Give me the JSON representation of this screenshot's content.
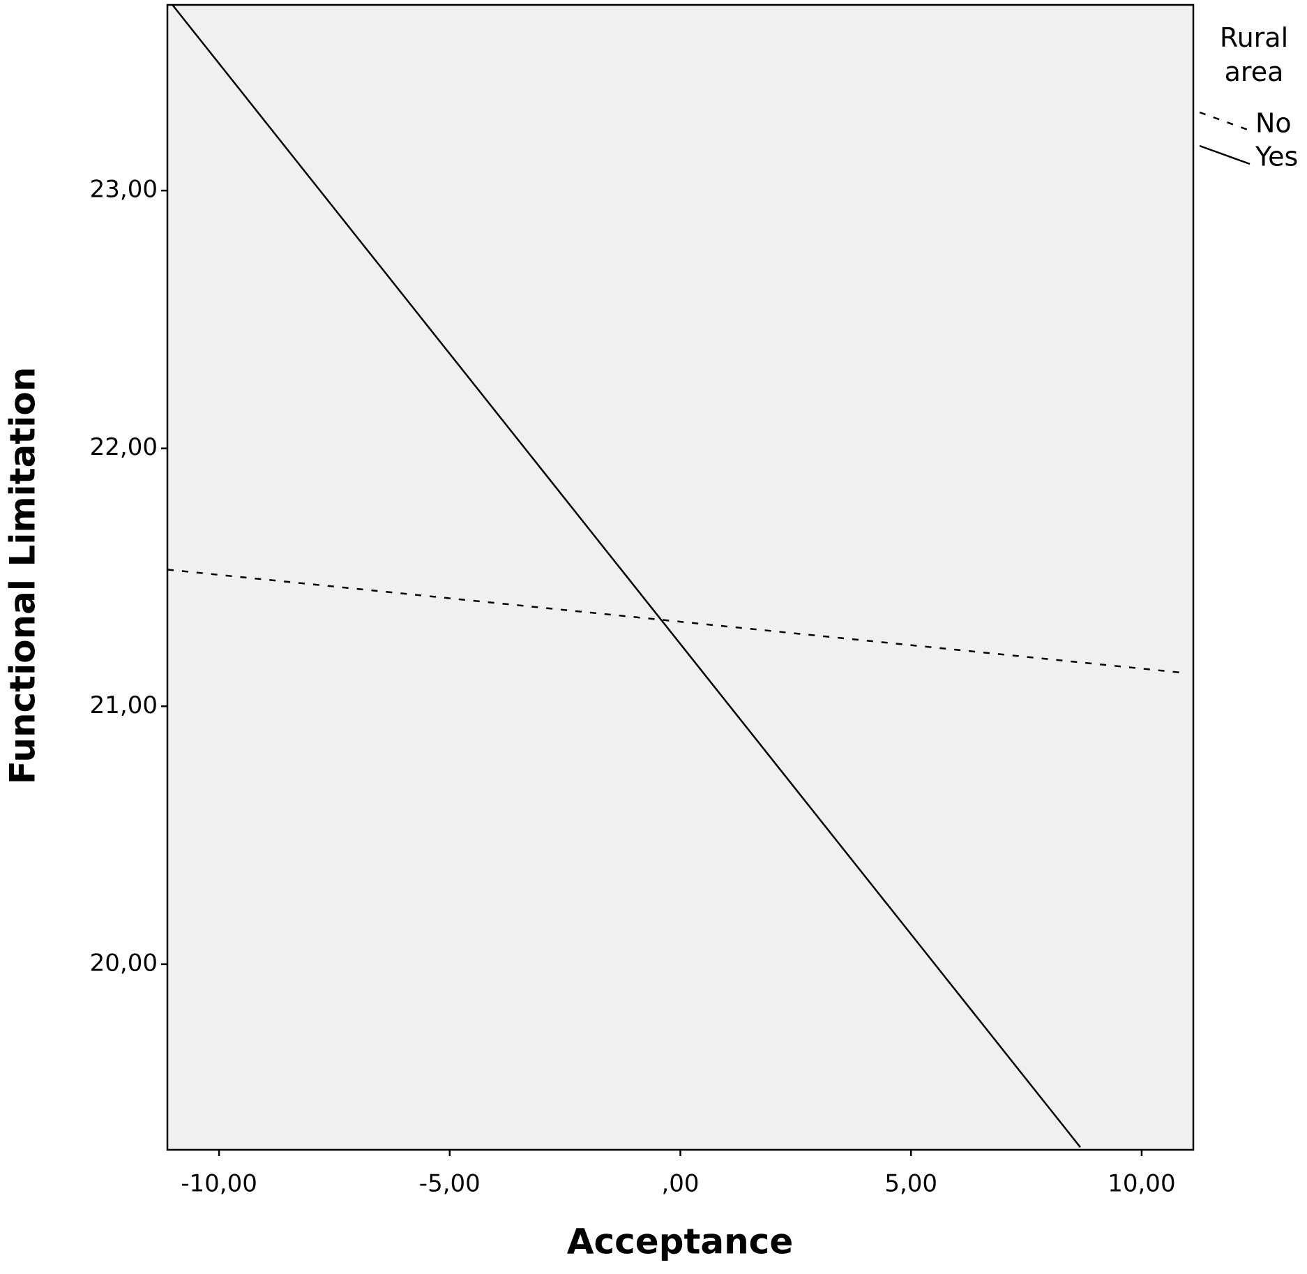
{
  "chart_data": {
    "type": "line",
    "x_label": "Acceptance",
    "y_label": "Functional Limitation",
    "legend_title": "Rural area",
    "legend": "top-right",
    "series": [
      {
        "name": "No",
        "color": "#000000",
        "dash": true,
        "x": [
          -11.12,
          10.89
        ],
        "values": [
          21.53,
          21.13
        ]
      },
      {
        "name": "Yes",
        "color": "#000000",
        "dash": false,
        "x": [
          -11.01,
          8.67
        ],
        "values": [
          23.72,
          19.29
        ]
      }
    ],
    "xlim": [
      -11.12,
      11.12
    ],
    "xticks": [
      {
        "value": -10,
        "label": "-10,00"
      },
      {
        "value": -5,
        "label": "-5,00"
      },
      {
        "value": 0,
        "label": ",00"
      },
      {
        "value": 5,
        "label": "5,00"
      },
      {
        "value": 10,
        "label": "10,00"
      }
    ],
    "ylim": [
      19.28,
      23.72
    ],
    "yticks": [
      {
        "value": 20,
        "label": "20,00"
      },
      {
        "value": 21,
        "label": "21,00"
      },
      {
        "value": 22,
        "label": "22,00"
      },
      {
        "value": 23,
        "label": "23,00"
      }
    ],
    "plot_background": "#f0f0f0"
  }
}
